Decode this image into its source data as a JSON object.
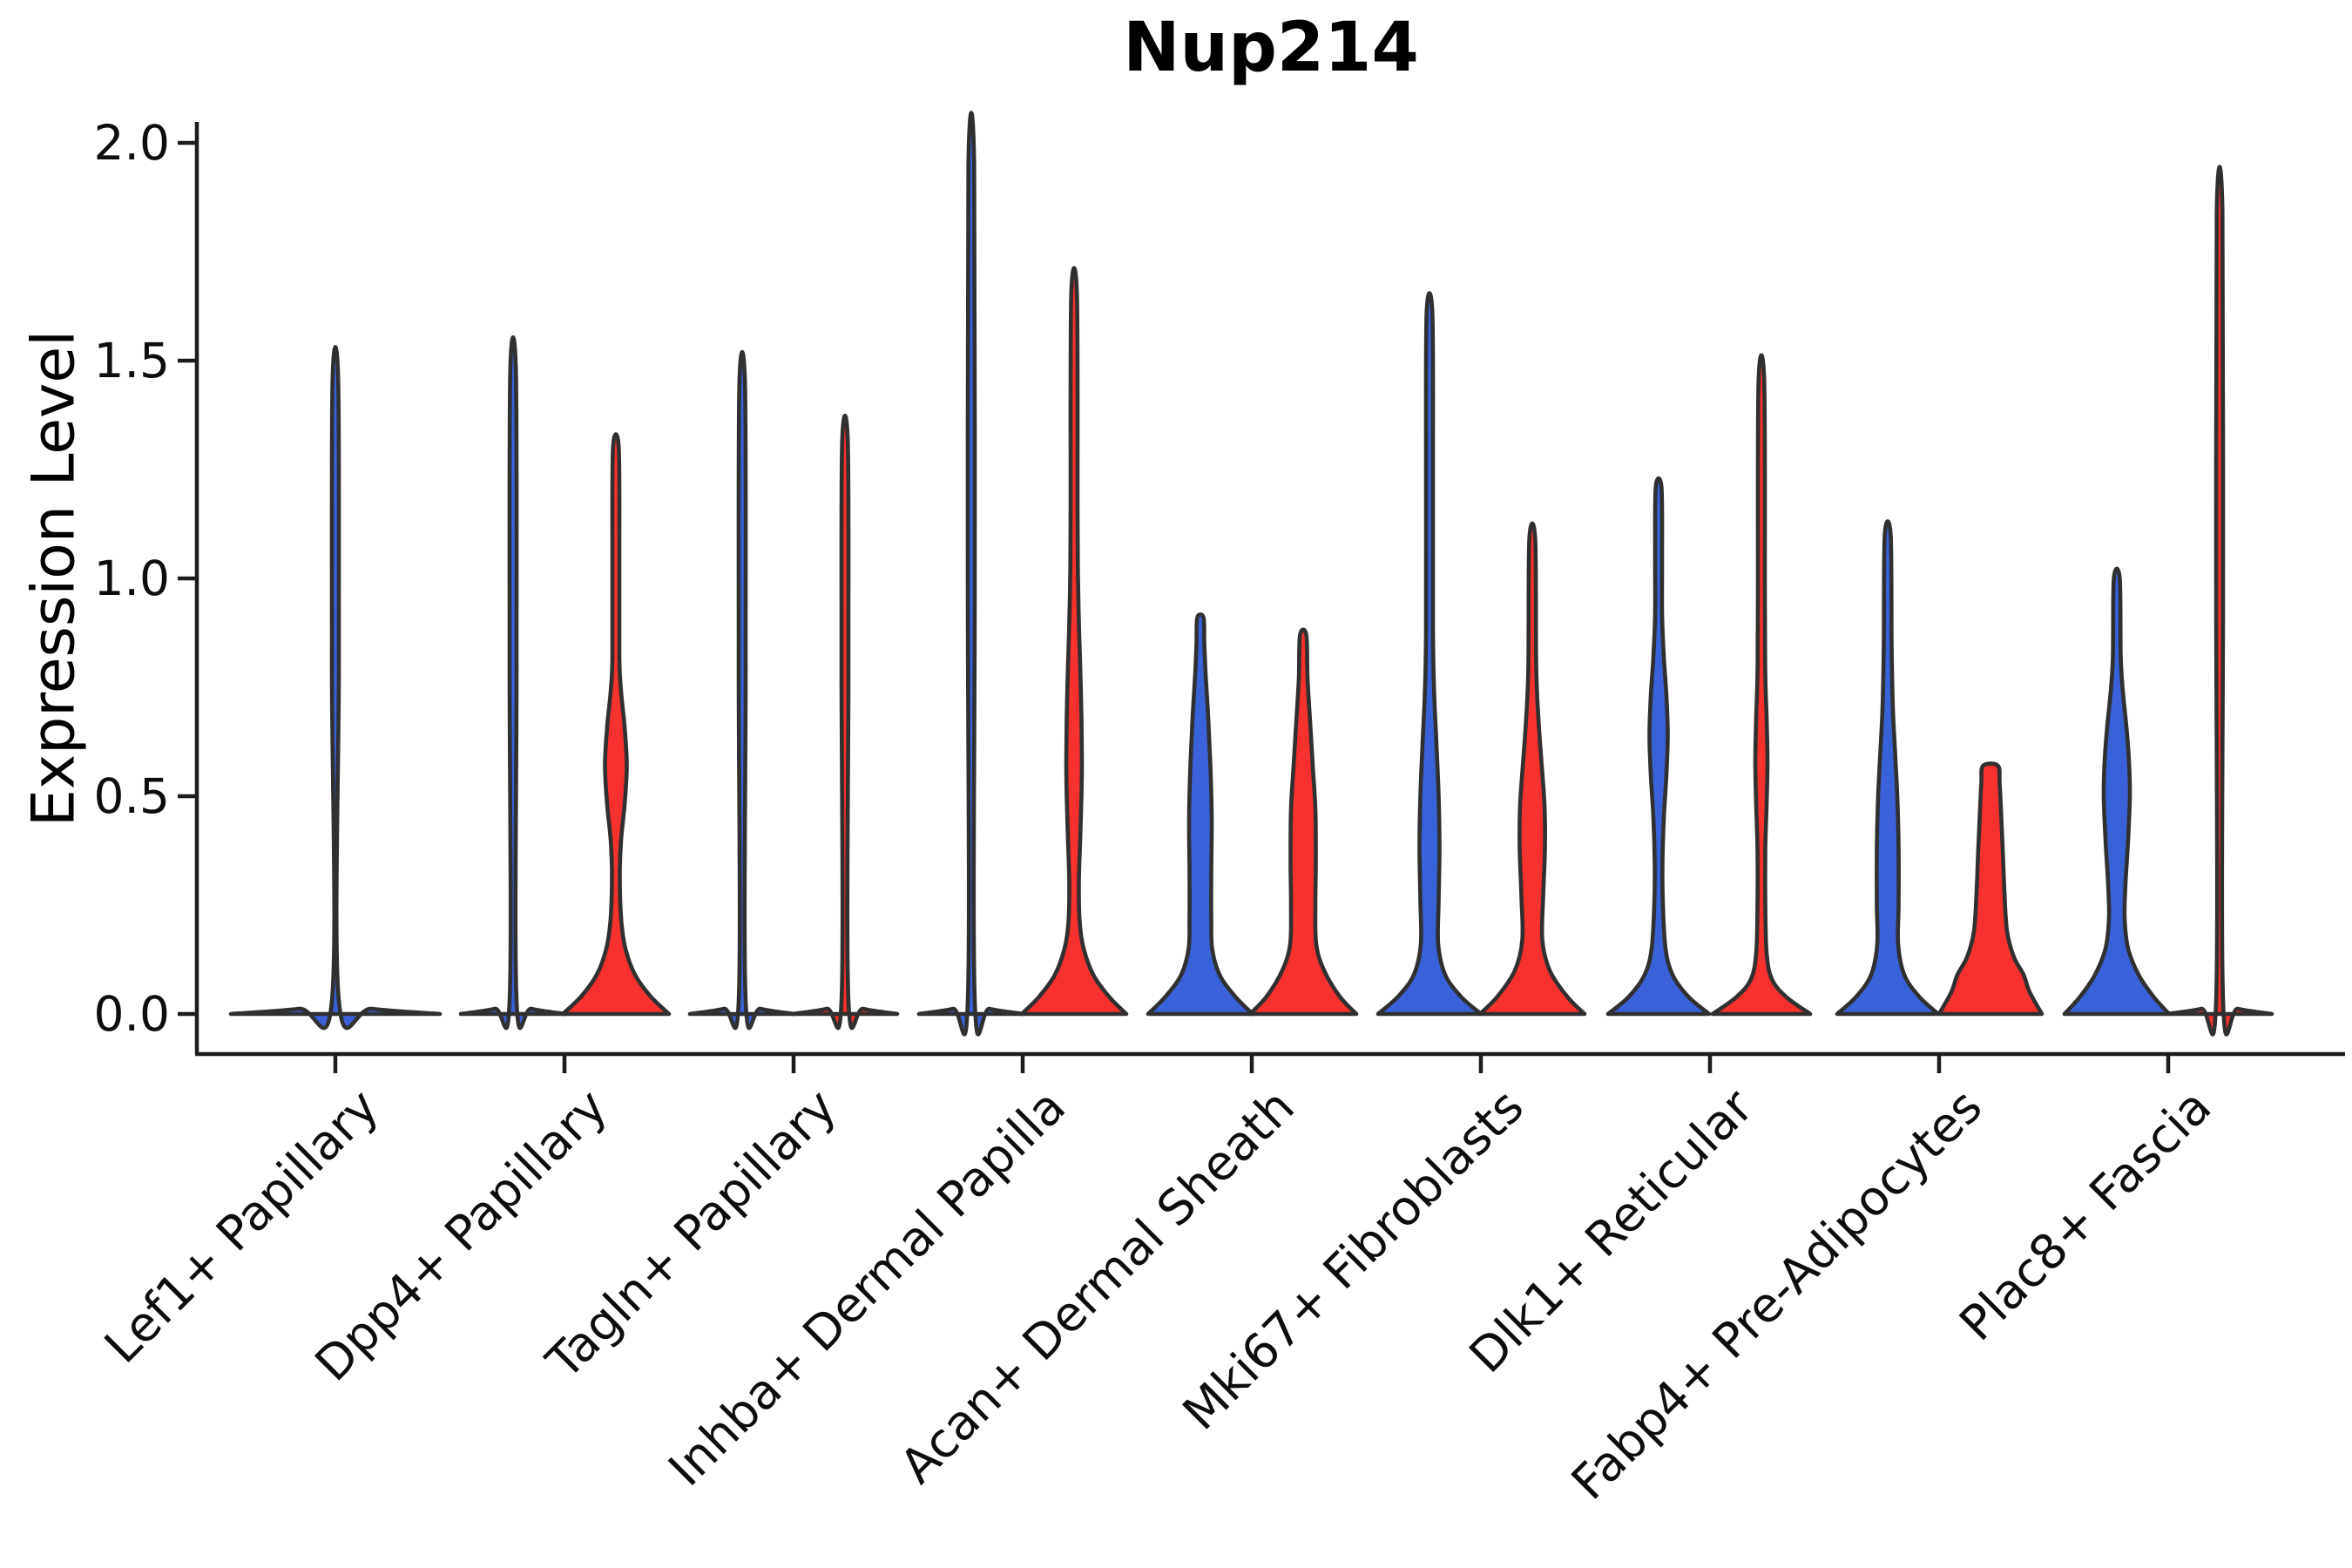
{
  "chart_data": {
    "type": "violin",
    "title": "Nup214",
    "xlabel": "",
    "ylabel": "Expression Level",
    "ylim": [
      0.0,
      2.0
    ],
    "y_ticks": [
      "0.0",
      "0.5",
      "1.0",
      "1.5",
      "2.0"
    ],
    "y_tick_values": [
      0.0,
      0.5,
      1.0,
      1.5,
      2.0
    ],
    "grid": "off",
    "legend": "none",
    "categories": [
      "Lef1+ Papillary",
      "Dpp4+ Papillary",
      "Tagln+ Papillary",
      "Inhba+ Dermal Papilla",
      "Acan+ Dermal Sheath",
      "Mki67+ Fibroblasts",
      "Dlk1+ Reticular",
      "Fabp4+ Pre-Adipocytes",
      "Plac8+ Fascia"
    ],
    "palette": {
      "blue": "#3A62D8",
      "red": "#F6312E"
    },
    "edge_color": "#303030",
    "axis_color": "#1c1c1c",
    "violins": [
      {
        "category": 0,
        "side": "center",
        "color": "blue",
        "max": 1.45,
        "profile": [
          [
            0,
            120
          ],
          [
            0.012,
            42
          ],
          [
            0.03,
            4
          ],
          [
            0.8,
            4
          ],
          [
            1.45,
            3.3
          ]
        ]
      },
      {
        "category": 1,
        "side": "left",
        "color": "blue",
        "max": 1.47,
        "profile": [
          [
            0,
            60
          ],
          [
            0.012,
            21
          ],
          [
            0.03,
            4
          ],
          [
            0.8,
            4
          ],
          [
            1.47,
            3.3
          ]
        ]
      },
      {
        "category": 1,
        "side": "right",
        "color": "red",
        "max": 1.3,
        "profile": [
          [
            0,
            61
          ],
          [
            0.04,
            40
          ],
          [
            0.09,
            22
          ],
          [
            0.15,
            11
          ],
          [
            0.22,
            6
          ],
          [
            0.32,
            4.5
          ],
          [
            0.4,
            6
          ],
          [
            0.48,
            10
          ],
          [
            0.57,
            12.5
          ],
          [
            0.66,
            10
          ],
          [
            0.74,
            6
          ],
          [
            0.82,
            4
          ],
          [
            1.05,
            4
          ],
          [
            1.3,
            3.3
          ]
        ]
      },
      {
        "category": 2,
        "side": "left",
        "color": "blue",
        "max": 1.44,
        "profile": [
          [
            0,
            60
          ],
          [
            0.012,
            21
          ],
          [
            0.03,
            4
          ],
          [
            0.8,
            4
          ],
          [
            1.44,
            3.3
          ]
        ]
      },
      {
        "category": 2,
        "side": "right",
        "color": "red",
        "max": 1.31,
        "profile": [
          [
            0,
            60
          ],
          [
            0.012,
            21
          ],
          [
            0.03,
            4
          ],
          [
            0.8,
            4
          ],
          [
            1.31,
            3.3
          ]
        ]
      },
      {
        "category": 3,
        "side": "left",
        "color": "blue",
        "max": 1.95,
        "profile": [
          [
            0,
            60
          ],
          [
            0.012,
            21
          ],
          [
            0.03,
            4
          ],
          [
            1.0,
            4
          ],
          [
            1.95,
            3.3
          ]
        ]
      },
      {
        "category": 3,
        "side": "right",
        "color": "red",
        "max": 1.65,
        "profile": [
          [
            0,
            60
          ],
          [
            0.04,
            40
          ],
          [
            0.09,
            22
          ],
          [
            0.15,
            11
          ],
          [
            0.21,
            6.5
          ],
          [
            0.3,
            5.5
          ],
          [
            0.4,
            7
          ],
          [
            0.5,
            8.5
          ],
          [
            0.58,
            9
          ],
          [
            0.68,
            8.5
          ],
          [
            0.8,
            7
          ],
          [
            0.9,
            5.5
          ],
          [
            1.0,
            4.5
          ],
          [
            1.15,
            4
          ],
          [
            1.65,
            3.3
          ]
        ]
      },
      {
        "category": 4,
        "side": "left",
        "color": "blue",
        "max": 0.91,
        "profile": [
          [
            0,
            60
          ],
          [
            0.04,
            40
          ],
          [
            0.09,
            22
          ],
          [
            0.15,
            13.5
          ],
          [
            0.22,
            12.5
          ],
          [
            0.33,
            12.5
          ],
          [
            0.45,
            13
          ],
          [
            0.57,
            11.5
          ],
          [
            0.68,
            9
          ],
          [
            0.78,
            6
          ],
          [
            0.85,
            4.5
          ],
          [
            0.91,
            3.6
          ]
        ]
      },
      {
        "category": 4,
        "side": "right",
        "color": "red",
        "max": 0.87,
        "profile": [
          [
            0,
            61
          ],
          [
            0.04,
            42
          ],
          [
            0.1,
            24
          ],
          [
            0.16,
            15
          ],
          [
            0.25,
            14
          ],
          [
            0.35,
            14.5
          ],
          [
            0.47,
            14
          ],
          [
            0.57,
            11
          ],
          [
            0.67,
            8
          ],
          [
            0.77,
            5
          ],
          [
            0.87,
            3.6
          ]
        ]
      },
      {
        "category": 5,
        "side": "left",
        "color": "blue",
        "max": 1.61,
        "profile": [
          [
            0,
            59
          ],
          [
            0.04,
            36
          ],
          [
            0.09,
            18
          ],
          [
            0.16,
            10
          ],
          [
            0.26,
            10.5
          ],
          [
            0.38,
            11.5
          ],
          [
            0.5,
            10.5
          ],
          [
            0.62,
            8
          ],
          [
            0.73,
            5.5
          ],
          [
            0.88,
            4
          ],
          [
            1.25,
            4
          ],
          [
            1.61,
            3.3
          ]
        ]
      },
      {
        "category": 5,
        "side": "right",
        "color": "red",
        "max": 1.09,
        "profile": [
          [
            0,
            60
          ],
          [
            0.04,
            40
          ],
          [
            0.1,
            20
          ],
          [
            0.17,
            11.5
          ],
          [
            0.27,
            12.5
          ],
          [
            0.38,
            14.5
          ],
          [
            0.48,
            14
          ],
          [
            0.58,
            10.5
          ],
          [
            0.68,
            7
          ],
          [
            0.8,
            4.5
          ],
          [
            1.09,
            3.4
          ]
        ]
      },
      {
        "category": 6,
        "side": "left",
        "color": "blue",
        "max": 1.21,
        "profile": [
          [
            0,
            58
          ],
          [
            0.04,
            34
          ],
          [
            0.09,
            16
          ],
          [
            0.15,
            8
          ],
          [
            0.25,
            5
          ],
          [
            0.35,
            4.5
          ],
          [
            0.45,
            6
          ],
          [
            0.55,
            9
          ],
          [
            0.64,
            10.5
          ],
          [
            0.73,
            9
          ],
          [
            0.82,
            6
          ],
          [
            0.92,
            4
          ],
          [
            1.05,
            4
          ],
          [
            1.21,
            3.3
          ]
        ]
      },
      {
        "category": 6,
        "side": "right",
        "color": "red",
        "max": 1.45,
        "profile": [
          [
            0,
            56
          ],
          [
            0.04,
            28
          ],
          [
            0.08,
            12
          ],
          [
            0.14,
            6
          ],
          [
            0.25,
            4.5
          ],
          [
            0.38,
            4.5
          ],
          [
            0.48,
            6
          ],
          [
            0.58,
            7
          ],
          [
            0.68,
            6
          ],
          [
            0.78,
            4.5
          ],
          [
            0.95,
            4
          ],
          [
            1.45,
            3.3
          ]
        ]
      },
      {
        "category": 7,
        "side": "left",
        "color": "blue",
        "max": 1.1,
        "profile": [
          [
            0,
            58
          ],
          [
            0.04,
            36
          ],
          [
            0.09,
            19
          ],
          [
            0.16,
            12
          ],
          [
            0.25,
            12.5
          ],
          [
            0.38,
            12.5
          ],
          [
            0.5,
            11
          ],
          [
            0.6,
            8.5
          ],
          [
            0.7,
            6
          ],
          [
            0.85,
            4.5
          ],
          [
            1.1,
            3.4
          ]
        ]
      },
      {
        "category": 7,
        "side": "right",
        "color": "red",
        "max": 0.57,
        "profile": [
          [
            0,
            59
          ],
          [
            0.05,
            45
          ],
          [
            0.09,
            38
          ],
          [
            0.13,
            27
          ],
          [
            0.19,
            19
          ],
          [
            0.28,
            16
          ],
          [
            0.38,
            14
          ],
          [
            0.47,
            12
          ],
          [
            0.53,
            10.5
          ],
          [
            0.57,
            8.5
          ]
        ]
      },
      {
        "category": 8,
        "side": "left",
        "color": "blue",
        "max": 1.0,
        "profile": [
          [
            0,
            60
          ],
          [
            0.04,
            42
          ],
          [
            0.09,
            25
          ],
          [
            0.15,
            13
          ],
          [
            0.22,
            9
          ],
          [
            0.3,
            10
          ],
          [
            0.4,
            13
          ],
          [
            0.5,
            15
          ],
          [
            0.58,
            14
          ],
          [
            0.66,
            11
          ],
          [
            0.74,
            7
          ],
          [
            0.82,
            4.5
          ],
          [
            1.0,
            3.4
          ]
        ]
      },
      {
        "category": 8,
        "side": "right",
        "color": "red",
        "max": 1.84,
        "profile": [
          [
            0,
            60
          ],
          [
            0.012,
            21
          ],
          [
            0.03,
            4
          ],
          [
            1.0,
            4
          ],
          [
            1.84,
            3.3
          ]
        ]
      }
    ]
  }
}
